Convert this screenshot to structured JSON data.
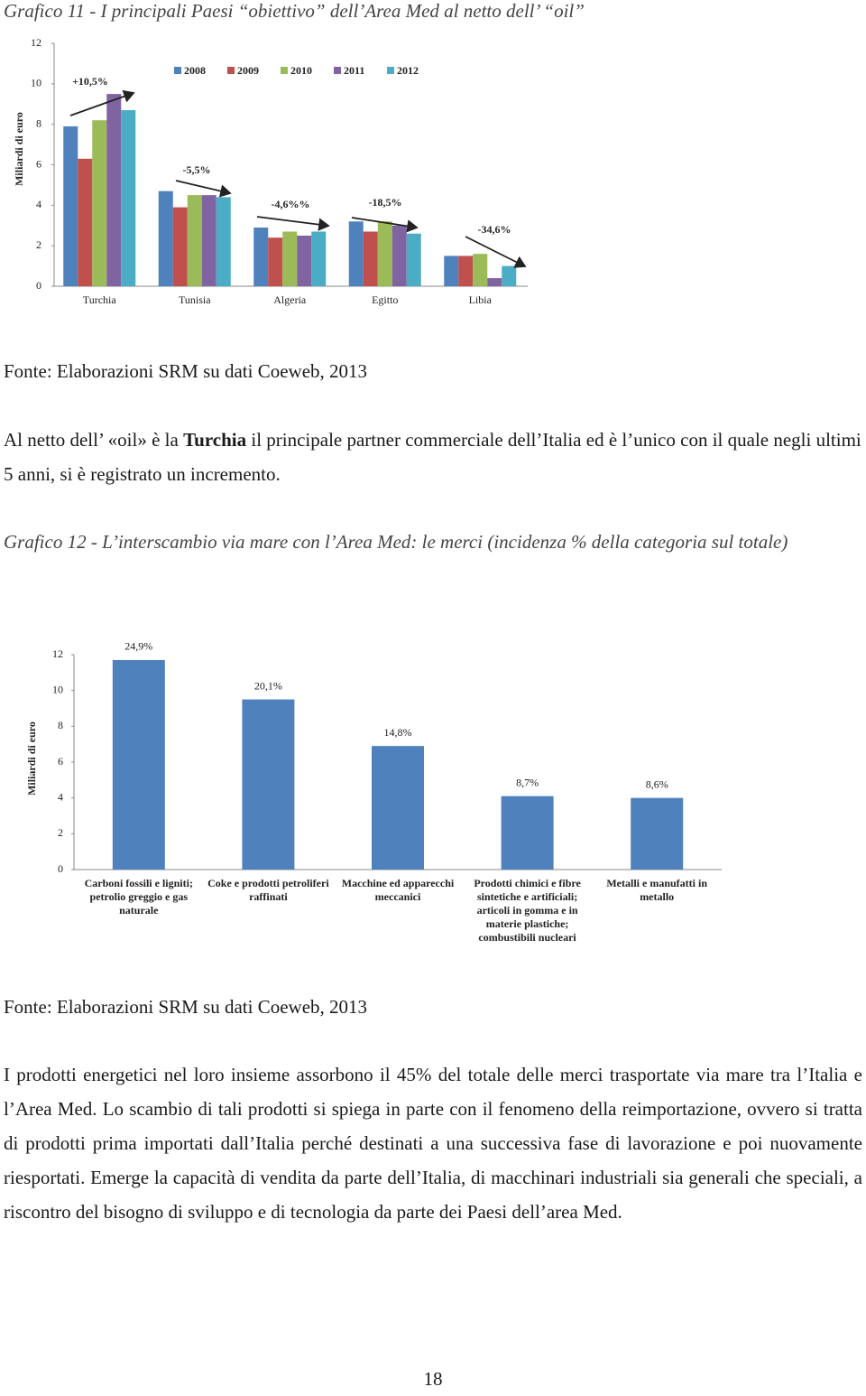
{
  "caption_1": "Grafico 11 - I principali Paesi “obiettivo” dell’Area Med al netto dell’ “oil”",
  "chart_data": [
    {
      "type": "bar",
      "y_axis_label": "Miliardi di euro",
      "categories": [
        "Turchia",
        "Tunisia",
        "Algeria",
        "Egitto",
        "Libia"
      ],
      "series": [
        {
          "name": "2008",
          "color": "#4f81bd",
          "values": [
            7.9,
            4.7,
            2.9,
            3.2,
            1.5
          ]
        },
        {
          "name": "2009",
          "color": "#c0504d",
          "values": [
            6.3,
            3.9,
            2.4,
            2.7,
            1.5
          ]
        },
        {
          "name": "2010",
          "color": "#9bbb59",
          "values": [
            8.2,
            4.5,
            2.7,
            3.2,
            1.6
          ]
        },
        {
          "name": "2011",
          "color": "#8064a2",
          "values": [
            9.5,
            4.5,
            2.5,
            3.0,
            0.4
          ]
        },
        {
          "name": "2012",
          "color": "#4bacc6",
          "values": [
            8.7,
            4.4,
            2.7,
            2.6,
            1.0
          ]
        }
      ],
      "annotations": [
        "+10,5%",
        "-5,5%",
        "-4,6%%",
        "-18,5%",
        "-34,6%"
      ],
      "ylim": [
        0,
        12
      ],
      "yticks": [
        0,
        2,
        4,
        6,
        8,
        10,
        12
      ],
      "grid": false,
      "legend": "top"
    },
    {
      "type": "bar",
      "y_axis_label": "Miliardi di euro",
      "categories": [
        "Carboni fossili e ligniti; petrolio greggio e gas naturale",
        "Coke e prodotti petroliferi raffinati",
        "Macchine ed apparecchi meccanici",
        "Prodotti chimici e fibre sintetiche e artificiali; articoli in gomma e in materie plastiche; combustibili nucleari",
        "Metalli e manufatti in metallo"
      ],
      "values": [
        11.7,
        9.5,
        6.9,
        4.1,
        4.0
      ],
      "color": "#4f81bd",
      "annotations": [
        "24,9%",
        "20,1%",
        "14,8%",
        "8,7%",
        "8,6%"
      ],
      "ylim": [
        0,
        12
      ],
      "yticks": [
        0,
        2,
        4,
        6,
        8,
        10,
        12
      ],
      "grid": false
    }
  ],
  "source_1": "Fonte: Elaborazioni SRM su dati Coeweb, 2013",
  "paragraph_1": [
    "Al netto dell’ «oil» è la ",
    "Turchia",
    " il principale partner commerciale dell’Italia ed è l’unico con il quale negli ultimi 5 anni, si è registrato un incremento."
  ],
  "caption_2": "Grafico 12 - L’interscambio via mare con l’Area Med: le merci (incidenza % della categoria sul totale)",
  "source_2": "Fonte: Elaborazioni SRM su dati Coeweb, 2013",
  "paragraph_2": "I prodotti energetici nel loro insieme assorbono il 45% del totale delle merci trasportate via mare tra l’Italia e l’Area Med. Lo scambio di tali prodotti si spiega in parte con il fenomeno della reimportazione, ovvero si tratta di prodotti prima importati dall’Italia perché destinati a una successiva fase di lavorazione e poi nuovamente riesportati. Emerge la capacità di vendita da parte dell’Italia, di macchinari industriali sia generali che speciali, a riscontro del bisogno di sviluppo e di tecnologia da parte dei Paesi dell’area Med.",
  "page_number": "18"
}
